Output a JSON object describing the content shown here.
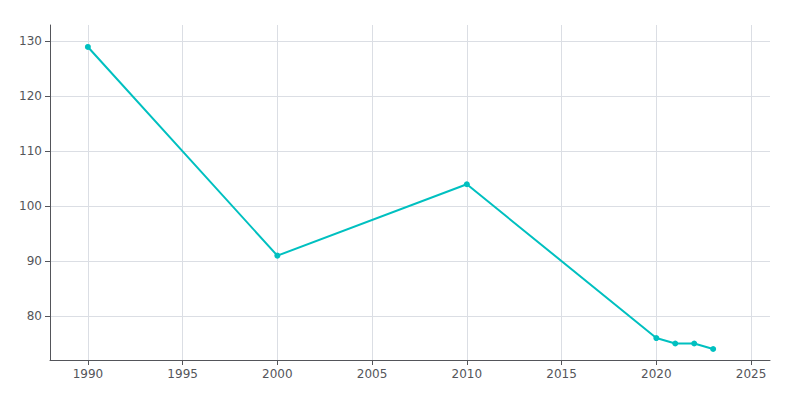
{
  "chart_data": {
    "type": "line",
    "x": [
      1990,
      2000,
      2010,
      2020,
      2021,
      2022,
      2023
    ],
    "values": [
      129,
      91,
      104,
      76,
      75,
      75,
      74
    ],
    "color": "#00c0c0",
    "marker": "circle",
    "xlim": [
      1988,
      2026
    ],
    "xticks": [
      1990,
      1995,
      2000,
      2005,
      2010,
      2015,
      2020,
      2025
    ],
    "ylim": [
      72,
      133
    ],
    "yticks": [
      80,
      90,
      100,
      110,
      120,
      130
    ],
    "grid": true
  }
}
